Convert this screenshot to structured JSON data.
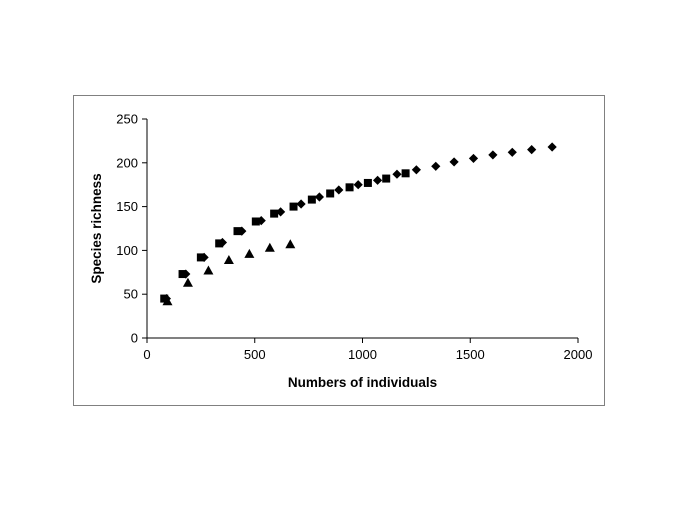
{
  "chart_data": {
    "type": "scatter",
    "title": "",
    "xlabel": "Numbers of individuals",
    "ylabel": "Species richness",
    "xlim": [
      0,
      2000
    ],
    "ylim": [
      0,
      250
    ],
    "x_ticks": [
      0,
      500,
      1000,
      1500,
      2000
    ],
    "y_ticks": [
      0,
      50,
      100,
      150,
      200,
      250
    ],
    "grid": false,
    "legend": "none",
    "series": [
      {
        "marker": "diamond",
        "color": "#000000",
        "x": [
          90,
          180,
          265,
          350,
          440,
          530,
          620,
          715,
          800,
          890,
          980,
          1070,
          1160,
          1250,
          1340,
          1425,
          1515,
          1605,
          1695,
          1785,
          1880
        ],
        "y": [
          45,
          73,
          92,
          109,
          122,
          134,
          144,
          153,
          161,
          169,
          175,
          180,
          187,
          192,
          196,
          201,
          205,
          209,
          212,
          215,
          218
        ]
      },
      {
        "marker": "square",
        "color": "#000000",
        "x": [
          80,
          165,
          250,
          335,
          420,
          505,
          590,
          680,
          765,
          850,
          940,
          1025,
          1110,
          1200
        ],
        "y": [
          45,
          73,
          92,
          108,
          122,
          133,
          142,
          150,
          158,
          165,
          172,
          177,
          182,
          188
        ]
      },
      {
        "marker": "triangle",
        "color": "#000000",
        "x": [
          95,
          190,
          285,
          380,
          475,
          570,
          665
        ],
        "y": [
          42,
          63,
          77,
          89,
          96,
          103,
          107
        ]
      }
    ]
  }
}
